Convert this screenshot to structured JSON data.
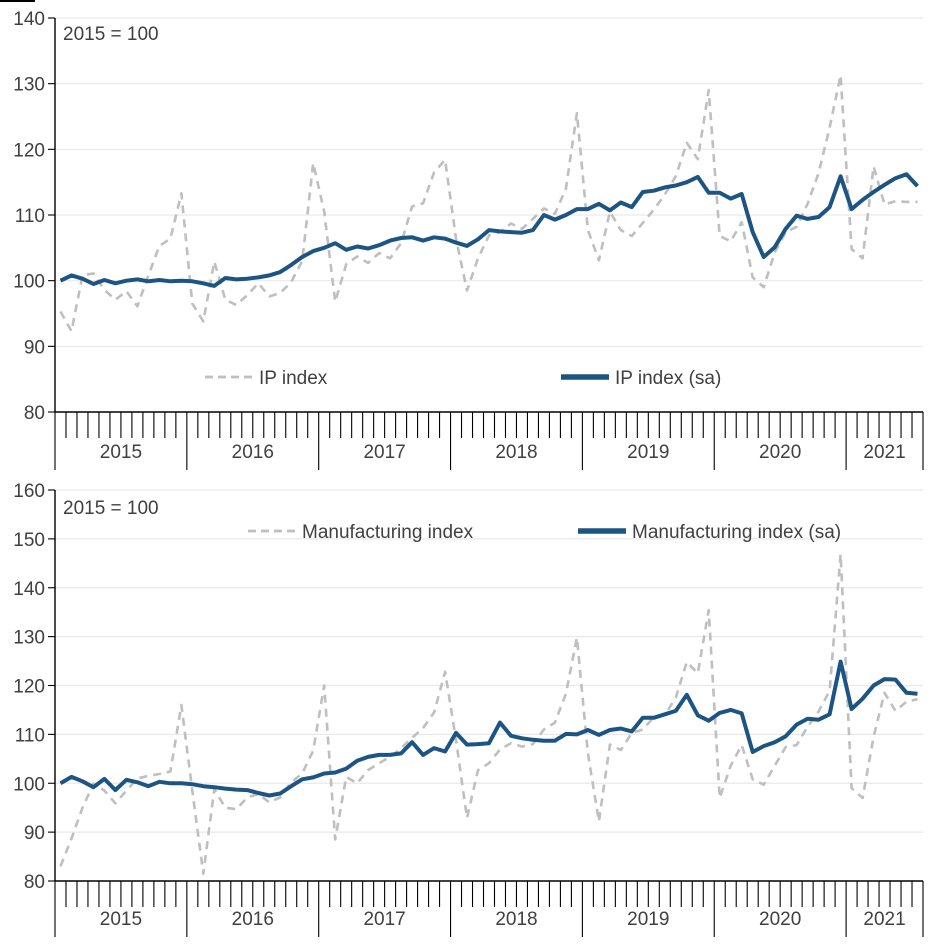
{
  "page": {
    "background": "#ffffff",
    "text_color": "#404040",
    "axis_color": "#000000",
    "gridline_color": "#e9e9e9"
  },
  "chart_data": [
    {
      "type": "line",
      "annotation": "2015 = 100",
      "ylim": [
        80,
        140
      ],
      "ytick_step": 10,
      "yticks": [
        80,
        90,
        100,
        110,
        120,
        130,
        140
      ],
      "grid": "horizontal",
      "x_unit": "month",
      "x_range": "Jan 2015 - Jul 2021",
      "year_labels": [
        "2015",
        "2016",
        "2017",
        "2018",
        "2019",
        "2020",
        "2021"
      ],
      "legend_position": "inside-bottom",
      "series": [
        {
          "name": "IP index",
          "line_style": "dashed",
          "color": "#bfbfbf",
          "values": [
            95.3,
            92.3,
            100.8,
            101.1,
            98.6,
            97.1,
            98.4,
            96.1,
            100.8,
            105.3,
            106.4,
            113.3,
            96.5,
            93.8,
            102.9,
            97.1,
            96.3,
            97.8,
            99.6,
            97.6,
            98.1,
            99.8,
            103.0,
            117.9,
            110.5,
            96.8,
            102.5,
            103.7,
            102.7,
            104.2,
            103.4,
            105.7,
            111.3,
            111.8,
            116.5,
            118.4,
            106.4,
            98.5,
            103.4,
            106.9,
            107.4,
            108.7,
            107.9,
            109.4,
            111.0,
            110.2,
            114.0,
            125.5,
            107.7,
            103.1,
            110.5,
            107.7,
            106.8,
            108.8,
            110.8,
            113.1,
            115.9,
            121.0,
            118.5,
            129.0,
            106.8,
            106.0,
            108.9,
            100.5,
            99.0,
            104.3,
            107.4,
            108.2,
            111.7,
            116.4,
            123.3,
            131.3,
            104.8,
            103.4,
            117.4,
            111.6,
            112.1,
            112.0,
            112.0
          ]
        },
        {
          "name": "IP index (sa)",
          "line_style": "solid",
          "color": "#1c5584",
          "values": [
            100.0,
            100.8,
            100.3,
            99.5,
            100.1,
            99.6,
            100.0,
            100.2,
            99.9,
            100.1,
            99.9,
            100.0,
            99.9,
            99.6,
            99.2,
            100.4,
            100.2,
            100.3,
            100.5,
            100.8,
            101.3,
            102.4,
            103.6,
            104.5,
            105.0,
            105.7,
            104.7,
            105.2,
            104.9,
            105.4,
            106.1,
            106.5,
            106.6,
            106.1,
            106.6,
            106.4,
            105.8,
            105.3,
            106.3,
            107.7,
            107.5,
            107.4,
            107.3,
            107.7,
            110.0,
            109.3,
            110.0,
            110.9,
            110.9,
            111.7,
            110.7,
            111.9,
            111.2,
            113.5,
            113.7,
            114.2,
            114.5,
            115.0,
            115.8,
            113.4,
            113.4,
            112.5,
            113.2,
            107.4,
            103.6,
            105.1,
            107.9,
            109.9,
            109.4,
            109.7,
            111.2,
            115.9,
            110.9,
            112.3,
            113.5,
            114.6,
            115.6,
            116.2,
            114.4
          ]
        }
      ]
    },
    {
      "type": "line",
      "annotation": "2015 = 100",
      "ylim": [
        80,
        160
      ],
      "ytick_step": 10,
      "yticks": [
        80,
        90,
        100,
        110,
        120,
        130,
        140,
        150,
        160
      ],
      "grid": "horizontal",
      "x_unit": "month",
      "x_range": "Jan 2015 - Jul 2021",
      "year_labels": [
        "2015",
        "2016",
        "2017",
        "2018",
        "2019",
        "2020",
        "2021"
      ],
      "legend_position": "inside-top",
      "series": [
        {
          "name": "Manufacturing index",
          "line_style": "dashed",
          "color": "#bfbfbf",
          "values": [
            83.0,
            88.7,
            95.0,
            99.9,
            98.5,
            95.9,
            98.5,
            101.0,
            101.5,
            101.9,
            102.4,
            116.0,
            98.5,
            81.5,
            98.8,
            95.0,
            94.7,
            97.1,
            97.8,
            96.1,
            97.1,
            100.2,
            102.0,
            106.7,
            120.0,
            88.5,
            101.3,
            100.0,
            102.7,
            104.1,
            105.4,
            107.2,
            109.3,
            111.3,
            114.5,
            122.8,
            108.9,
            92.9,
            102.7,
            104.1,
            106.9,
            108.2,
            107.5,
            108.0,
            111.0,
            112.4,
            118.3,
            129.8,
            106.1,
            92.2,
            107.9,
            106.8,
            110.3,
            111.0,
            113.5,
            114.0,
            117.5,
            124.8,
            122.5,
            135.4,
            97.0,
            103.6,
            107.8,
            100.8,
            99.7,
            103.6,
            107.4,
            107.8,
            111.6,
            114.7,
            118.9,
            146.9,
            99.0,
            97.0,
            109.5,
            118.5,
            114.8,
            116.7,
            117.2
          ]
        },
        {
          "name": "Manufacturing index (sa)",
          "line_style": "solid",
          "color": "#1c5584",
          "values": [
            100.0,
            101.3,
            100.4,
            99.2,
            100.9,
            98.6,
            100.7,
            100.2,
            99.4,
            100.3,
            100.0,
            100.0,
            99.8,
            99.4,
            99.2,
            98.9,
            98.7,
            98.6,
            98.0,
            97.5,
            97.9,
            99.4,
            100.8,
            101.2,
            102.0,
            102.2,
            103.0,
            104.6,
            105.4,
            105.8,
            105.8,
            106.1,
            108.4,
            105.8,
            107.2,
            106.5,
            110.3,
            107.9,
            108.0,
            108.2,
            112.4,
            109.7,
            109.2,
            108.9,
            108.7,
            108.7,
            110.1,
            110.0,
            110.9,
            109.9,
            110.9,
            111.2,
            110.6,
            113.4,
            113.4,
            114.1,
            114.8,
            118.1,
            113.9,
            112.8,
            114.4,
            115.0,
            114.3,
            106.4,
            107.6,
            108.4,
            109.6,
            112.0,
            113.2,
            113.0,
            114.1,
            124.9,
            115.2,
            117.3,
            120.0,
            121.3,
            121.2,
            118.5,
            118.3
          ]
        }
      ]
    }
  ]
}
